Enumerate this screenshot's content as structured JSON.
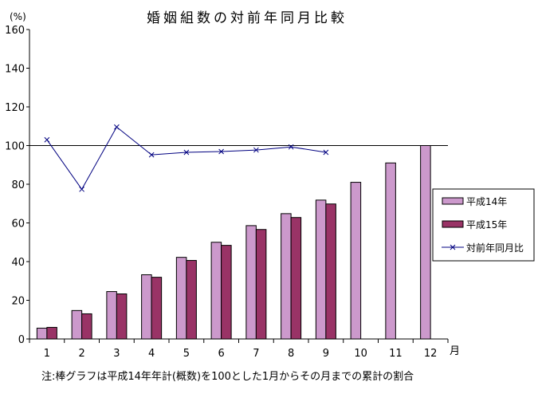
{
  "chart_data": {
    "type": "bar",
    "title": "婚姻組数の対前年同月比較",
    "ylabel": "(%)",
    "xlabel": "月",
    "ylim": [
      0,
      160
    ],
    "yticks": [
      0,
      20,
      40,
      60,
      80,
      100,
      120,
      140,
      160
    ],
    "categories": [
      "1",
      "2",
      "3",
      "4",
      "5",
      "6",
      "7",
      "8",
      "9",
      "10",
      "11",
      "12"
    ],
    "reference_line": 100,
    "series": [
      {
        "name": "平成14年",
        "type": "bar",
        "color": "#cc99cc",
        "values": [
          5.6,
          14.7,
          24.5,
          33.2,
          42.2,
          50,
          58.6,
          64.8,
          71.8,
          81,
          91,
          100
        ]
      },
      {
        "name": "平成15年",
        "type": "bar",
        "color": "#993366",
        "values": [
          6.0,
          13,
          23.3,
          31.9,
          40.6,
          48.4,
          56.6,
          62.8,
          69.8,
          null,
          null,
          null
        ]
      },
      {
        "name": "対前年同月比",
        "type": "line",
        "marker": "x",
        "color": "#000080",
        "values": [
          103,
          77.4,
          109.6,
          95.2,
          96.5,
          96.9,
          97.7,
          99.3,
          96.5,
          null,
          null,
          null
        ]
      }
    ],
    "legend_placement": "right",
    "grid": false,
    "note": "注:棒グラフは平成14年年計(概数)を100とした1月からその月までの累計の割合"
  }
}
